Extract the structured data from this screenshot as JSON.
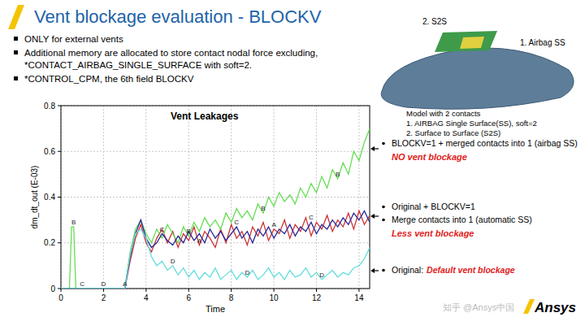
{
  "slide": {
    "title": "Vent blockage evaluation - BLOCKV",
    "bullets": [
      [
        "ONLY for external vents"
      ],
      [
        "Additional memory are allocated to store contact nodal force excluding,",
        "*CONTACT_AIRBAG_SINGLE_SURFACE with soft=2."
      ],
      [
        "*CONTROL_CPM, the 6th field BLOCKV"
      ]
    ],
    "model": {
      "labels": [
        "2. S2S",
        "1. Airbag SS"
      ],
      "notes": [
        "Model with 2 contacts",
        "1. AIRBAG Single Surface(SS), soft=2",
        "2. Surface to Surface (S2S)"
      ]
    },
    "annotations": [
      {
        "lines": [
          "BLOCKV=1 + merged contacts into 1 (airbag SS)"
        ],
        "emphasis": "NO vent blockage"
      },
      {
        "lines": [
          "Original + BLOCKV=1",
          "Merge contacts into 1 (automatic SS)"
        ],
        "emphasis": "Less vent blockage"
      },
      {
        "lines": [
          "Original:"
        ],
        "emphasis": "Default vent blockage",
        "inline": true
      }
    ],
    "watermark": "知乎 @Ansys中国",
    "logo": "Ansys"
  },
  "chart_data": {
    "type": "line",
    "title": "Vent Leakages",
    "x_label": "Time",
    "y_label": "dm_dt_out (E-03)",
    "x": [
      0,
      0.4,
      0.5,
      0.6,
      0.7,
      1,
      2,
      2.9,
      3,
      3.25,
      3.5,
      3.75,
      4,
      4.25,
      4.5,
      4.75,
      5,
      5.25,
      5.5,
      5.75,
      6,
      6.25,
      6.5,
      6.75,
      7,
      7.25,
      7.5,
      7.75,
      8,
      8.25,
      8.5,
      8.75,
      9,
      9.25,
      9.5,
      9.75,
      10,
      10.25,
      10.5,
      10.75,
      11,
      11.25,
      11.5,
      11.75,
      12,
      12.25,
      12.5,
      12.75,
      13,
      13.25,
      13.5,
      13.75,
      14,
      14.25,
      14.5
    ],
    "series": [
      {
        "name": "A",
        "color": "#cc3333",
        "values": [
          0,
          0,
          0,
          0,
          0,
          0,
          0,
          0,
          0,
          0.12,
          0.22,
          0.28,
          0.2,
          0.16,
          0.22,
          0.26,
          0.2,
          0.25,
          0.18,
          0.24,
          0.21,
          0.27,
          0.19,
          0.25,
          0.22,
          0.18,
          0.26,
          0.2,
          0.28,
          0.22,
          0.25,
          0.19,
          0.27,
          0.23,
          0.29,
          0.21,
          0.26,
          0.24,
          0.3,
          0.22,
          0.28,
          0.25,
          0.31,
          0.23,
          0.29,
          0.26,
          0.32,
          0.25,
          0.3,
          0.27,
          0.33,
          0.26,
          0.34,
          0.28,
          0.32
        ]
      },
      {
        "name": "B",
        "color": "#66dd55",
        "values": [
          0,
          0,
          0.27,
          0.27,
          0,
          0,
          0,
          0,
          0,
          0.16,
          0.26,
          0.3,
          0.24,
          0.2,
          0.26,
          0.22,
          0.28,
          0.24,
          0.2,
          0.27,
          0.23,
          0.29,
          0.25,
          0.31,
          0.27,
          0.3,
          0.26,
          0.33,
          0.29,
          0.35,
          0.31,
          0.34,
          0.3,
          0.37,
          0.33,
          0.4,
          0.36,
          0.42,
          0.38,
          0.41,
          0.37,
          0.44,
          0.4,
          0.46,
          0.42,
          0.49,
          0.44,
          0.52,
          0.48,
          0.55,
          0.5,
          0.6,
          0.56,
          0.64,
          0.7
        ]
      },
      {
        "name": "C",
        "color": "#2a2a9a",
        "values": [
          0,
          0,
          0,
          0,
          0,
          0,
          0,
          0,
          0,
          0.14,
          0.24,
          0.3,
          0.22,
          0.18,
          0.2,
          0.24,
          0.21,
          0.19,
          0.23,
          0.2,
          0.25,
          0.21,
          0.24,
          0.2,
          0.26,
          0.22,
          0.25,
          0.21,
          0.24,
          0.27,
          0.22,
          0.25,
          0.2,
          0.26,
          0.23,
          0.27,
          0.22,
          0.26,
          0.24,
          0.28,
          0.23,
          0.27,
          0.25,
          0.29,
          0.24,
          0.28,
          0.26,
          0.3,
          0.27,
          0.31,
          0.28,
          0.33,
          0.3,
          0.34,
          0.29
        ]
      },
      {
        "name": "D",
        "color": "#66dddd",
        "values": [
          0,
          0,
          0,
          0,
          0,
          0,
          0,
          0,
          0,
          0.15,
          0.24,
          0.26,
          0.22,
          0.14,
          0.1,
          0.12,
          0.08,
          0.1,
          0.06,
          0.09,
          0.05,
          0.08,
          0.04,
          0.07,
          0.05,
          0.09,
          0.04,
          0.06,
          0.08,
          0.04,
          0.07,
          0.05,
          0.08,
          0.04,
          0.06,
          0.09,
          0.05,
          0.07,
          0.04,
          0.08,
          0.05,
          0.06,
          0.09,
          0.05,
          0.07,
          0.04,
          0.06,
          0.08,
          0.05,
          0.07,
          0.06,
          0.09,
          0.1,
          0.13,
          0.18
        ]
      }
    ],
    "xlim": [
      0,
      14.5
    ],
    "ylim": [
      0,
      0.8
    ],
    "xticks": [
      0,
      2,
      4,
      6,
      8,
      10,
      12,
      14
    ],
    "yticks": [
      0,
      0.2,
      0.4,
      0.6,
      0.8
    ],
    "grid": true,
    "marker": "letter"
  }
}
